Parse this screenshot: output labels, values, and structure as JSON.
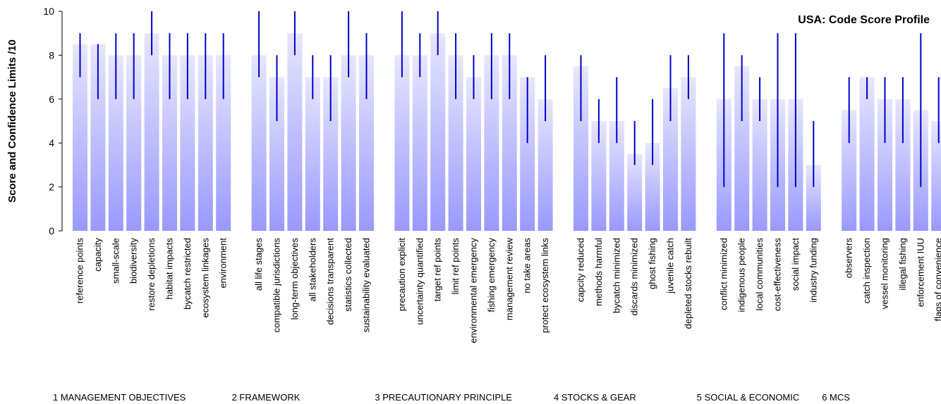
{
  "chart_data": {
    "type": "bar",
    "title": "USA: Code Score Profile",
    "ylabel": "Score and Confidence Limits /10",
    "xlabel": "",
    "ylim": [
      0,
      10
    ],
    "yticks": [
      "0",
      "2",
      "4",
      "6",
      "8",
      "10"
    ],
    "grid": false,
    "colors": {
      "bar_top": "#e6e6fc",
      "bar_bottom": "#9999ff",
      "error_bar": "#0000cc",
      "axis": "#000000"
    },
    "groups": [
      {
        "label": "1  MANAGEMENT OBJECTIVES",
        "categories": [
          "reference points",
          "capacity",
          "small-scale",
          "biodiversity",
          "restore depletions",
          "habitat impacts",
          "bycatch restricted",
          "ecosystem linkages",
          "environment"
        ],
        "values": [
          8.5,
          8.5,
          8,
          8,
          9,
          8,
          8,
          8,
          8
        ],
        "lower": [
          7,
          6,
          6,
          6,
          8,
          6,
          6,
          6,
          6
        ],
        "upper": [
          9,
          8.5,
          9,
          9,
          10,
          9,
          9,
          9,
          9
        ]
      },
      {
        "label": "2 FRAMEWORK",
        "categories": [
          "all life stages",
          "compatible jurisdictions",
          "long-term objectives",
          "all stakeholders",
          "decisions transparent",
          "statistics collected",
          "sustainability evaluated"
        ],
        "values": [
          8,
          7,
          9,
          7,
          7,
          8,
          8
        ],
        "lower": [
          7,
          5,
          8,
          6,
          5,
          7,
          6
        ],
        "upper": [
          10,
          8,
          10,
          8,
          8,
          10,
          9
        ]
      },
      {
        "label": "3 PRECAUTIONARY PRINCIPLE",
        "categories": [
          "precaution explicit",
          "uncertainty quantified",
          "target ref points",
          "limit ref points",
          "environmental emergency",
          "fishing emergency",
          "management review",
          "no take areas",
          "protect ecosystem links"
        ],
        "values": [
          8,
          8,
          9,
          8,
          7,
          8,
          8,
          7,
          6
        ],
        "lower": [
          7,
          7,
          8,
          6,
          6,
          6,
          6,
          4,
          5
        ],
        "upper": [
          10,
          9,
          10,
          9,
          8,
          9,
          9,
          7,
          8
        ]
      },
      {
        "label": "4 STOCKS & GEAR",
        "categories": [
          "capcity reduced",
          "methods harmful",
          "bycatch minimized",
          "discards minimized",
          "ghost fishing",
          "juvenile catch",
          "depleted stocks rebuilt"
        ],
        "values": [
          7.5,
          5,
          5,
          3.5,
          4,
          6.5,
          7
        ],
        "lower": [
          5,
          4,
          4,
          3,
          3,
          5,
          6
        ],
        "upper": [
          8,
          6,
          7,
          5,
          6,
          8,
          8
        ]
      },
      {
        "label": "5 SOCIAL & ECONOMIC",
        "categories": [
          "conflict minimized",
          "indigenous people",
          "local communities",
          "cost-effectiveness",
          "social impact",
          "industry funding"
        ],
        "values": [
          6,
          7.5,
          6,
          6,
          6,
          3
        ],
        "lower": [
          2,
          5,
          5,
          2,
          2,
          2
        ],
        "upper": [
          9,
          8,
          7,
          9,
          9,
          5
        ]
      },
      {
        "label": "6 MCS",
        "categories": [
          "observers",
          "catch inspection",
          "vessel monitoring",
          "illegal fishing",
          "enforcement IUU",
          "flags of convenience"
        ],
        "values": [
          5.5,
          7,
          6,
          6,
          5.5,
          5
        ],
        "lower": [
          4,
          6,
          4,
          4,
          2,
          4
        ],
        "upper": [
          7,
          7,
          7,
          7,
          9,
          7
        ]
      }
    ]
  }
}
